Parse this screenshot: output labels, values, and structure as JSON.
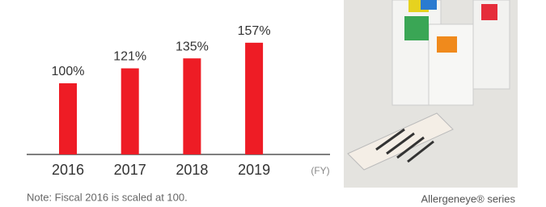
{
  "chart_data": {
    "type": "bar",
    "categories": [
      "2016",
      "2017",
      "2018",
      "2019"
    ],
    "values": [
      100,
      121,
      135,
      157
    ],
    "value_labels": [
      "100%",
      "121%",
      "135%",
      "157%"
    ],
    "color": "#ee1c25",
    "x_label": "(FY)",
    "note": "Note: Fiscal 2016 is scaled at 100."
  },
  "photo_caption": "Allergeneye® series"
}
